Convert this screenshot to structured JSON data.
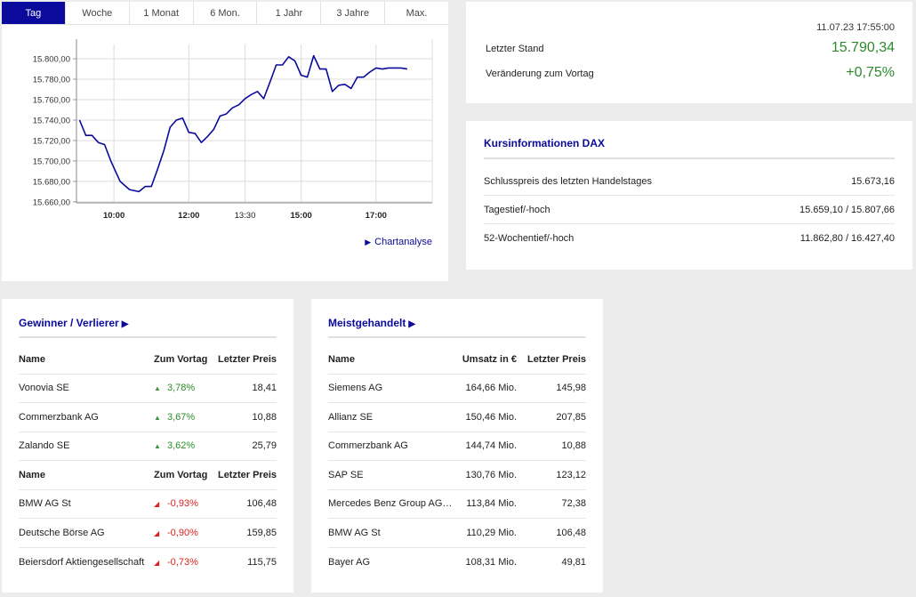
{
  "chart": {
    "tabs": [
      "Tag",
      "Woche",
      "1 Monat",
      "6 Mon.",
      "1 Jahr",
      "3 Jahre",
      "Max."
    ],
    "active_tab": 0,
    "link_label": "Chartanalyse",
    "link_icon": "play-triangle-icon",
    "line_color": "#0a0a9c"
  },
  "chart_data": {
    "type": "line",
    "y_ticks": [
      "15.800,00",
      "15.780,00",
      "15.760,00",
      "15.740,00",
      "15.720,00",
      "15.700,00",
      "15.680,00",
      "15.660,00"
    ],
    "y_tick_values": [
      15800,
      15780,
      15760,
      15740,
      15720,
      15700,
      15680,
      15660
    ],
    "x_ticks": [
      "10:00",
      "12:00",
      "13:30",
      "15:00",
      "17:00"
    ],
    "x_tick_values": [
      600,
      720,
      810,
      900,
      1020
    ],
    "xlim": [
      540,
      1110
    ],
    "ylim": [
      15659,
      15814
    ],
    "grid": true,
    "series": [
      {
        "x": [
          545,
          555,
          565,
          575,
          585,
          595,
          610,
          625,
          640,
          650,
          660,
          670,
          680,
          690,
          700,
          710,
          720,
          730,
          740,
          750,
          760,
          770,
          780,
          790,
          800,
          810,
          820,
          830,
          840,
          850,
          860,
          870,
          880,
          890,
          900,
          910,
          920,
          930,
          940,
          950,
          960,
          970,
          980,
          990,
          1000,
          1010,
          1020,
          1030,
          1040,
          1050,
          1060,
          1070
        ],
        "y": [
          15740,
          15725,
          15725,
          15718,
          15716,
          15700,
          15680,
          15672,
          15670,
          15675,
          15675,
          15692,
          15710,
          15733,
          15740,
          15742,
          15728,
          15727,
          15718,
          15724,
          15731,
          15744,
          15746,
          15752,
          15755,
          15761,
          15765,
          15768,
          15761,
          15777,
          15794,
          15794,
          15802,
          15798,
          15784,
          15782,
          15803,
          15790,
          15790,
          15768,
          15774,
          15775,
          15771,
          15782,
          15782,
          15787,
          15791,
          15790,
          15791,
          15791,
          15791,
          15790
        ]
      }
    ]
  },
  "quote": {
    "timestamp": "11.07.23 17:55:00",
    "last_label": "Letzter Stand",
    "last_value": "15.790,34",
    "change_label": "Veränderung zum Vortag",
    "change_value": "+0,75%",
    "positive_color": "#2d8a2d"
  },
  "info": {
    "title": "Kursinformationen DAX",
    "rows": [
      {
        "label": "Schlusspreis des letzten Handelstages",
        "value": "15.673,16"
      },
      {
        "label": "Tagestief/-hoch",
        "value": "15.659,10 / 15.807,66"
      },
      {
        "label": "52-Wochentief/-hoch",
        "value": "11.862,80 / 16.427,40"
      }
    ]
  },
  "winners": {
    "title": "Gewinner / Verlierer",
    "columns": [
      "Name",
      "Zum Vortag",
      "Letzter Preis"
    ],
    "gainers": [
      {
        "name": "Vonovia SE",
        "change": "3,78%",
        "price": "18,41"
      },
      {
        "name": "Commerzbank AG",
        "change": "3,67%",
        "price": "10,88"
      },
      {
        "name": "Zalando SE",
        "change": "3,62%",
        "price": "25,79"
      }
    ],
    "losers": [
      {
        "name": "BMW AG St",
        "change": "-0,93%",
        "price": "106,48"
      },
      {
        "name": "Deutsche Börse AG",
        "change": "-0,90%",
        "price": "159,85"
      },
      {
        "name": "Beiersdorf Aktiengesellschaft",
        "change": "-0,73%",
        "price": "115,75"
      }
    ],
    "up_color": "#2d8a2d",
    "down_color": "#dd2222"
  },
  "most_traded": {
    "title": "Meistgehandelt",
    "columns": [
      "Name",
      "Umsatz in €",
      "Letzter Preis"
    ],
    "rows": [
      {
        "name": "Siemens AG",
        "volume": "164,66 Mio.",
        "price": "145,98"
      },
      {
        "name": "Allianz SE",
        "volume": "150,46 Mio.",
        "price": "207,85"
      },
      {
        "name": "Commerzbank AG",
        "volume": "144,74 Mio.",
        "price": "10,88"
      },
      {
        "name": "SAP SE",
        "volume": "130,76 Mio.",
        "price": "123,12"
      },
      {
        "name": "Mercedes Benz Group AG ...",
        "volume": "113,84 Mio.",
        "price": "72,38"
      },
      {
        "name": "BMW AG St",
        "volume": "110,29 Mio.",
        "price": "106,48"
      },
      {
        "name": "Bayer AG",
        "volume": "108,31 Mio.",
        "price": "49,81"
      }
    ]
  }
}
